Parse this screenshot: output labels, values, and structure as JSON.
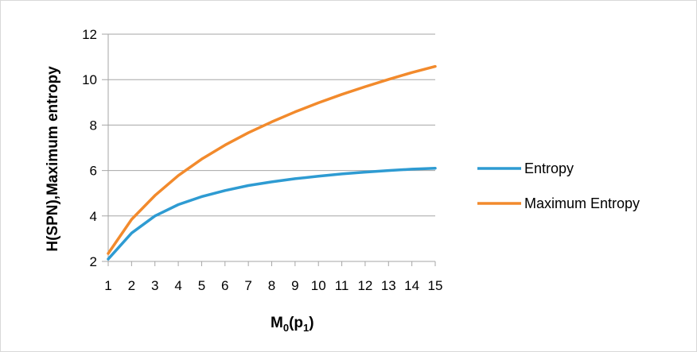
{
  "chart_data": {
    "type": "line",
    "title": "",
    "xlabel": {
      "base": "M",
      "sub1": "0",
      "mid": "(p",
      "sub2": "1",
      "end": ")"
    },
    "ylabel": "H(SPN),Maximum entropy",
    "x": [
      1,
      2,
      3,
      4,
      5,
      6,
      7,
      8,
      9,
      10,
      11,
      12,
      13,
      14,
      15
    ],
    "xticks": [
      "1",
      "2",
      "3",
      "4",
      "5",
      "6",
      "7",
      "8",
      "9",
      "10",
      "11",
      "12",
      "13",
      "14",
      "15"
    ],
    "ylim": [
      2,
      12
    ],
    "yticks": [
      "2",
      "4",
      "6",
      "8",
      "10",
      "12"
    ],
    "grid": true,
    "legend_position": "right",
    "series": [
      {
        "name": "Entropy",
        "color": "#2e9bd2",
        "values": [
          2.1,
          3.25,
          4.0,
          4.5,
          4.85,
          5.12,
          5.34,
          5.5,
          5.64,
          5.75,
          5.85,
          5.93,
          6.0,
          6.06,
          6.1
        ]
      },
      {
        "name": "Maximum Entropy",
        "color": "#f28a2c",
        "values": [
          2.35,
          3.85,
          4.9,
          5.78,
          6.5,
          7.12,
          7.66,
          8.14,
          8.58,
          8.98,
          9.35,
          9.69,
          10.01,
          10.31,
          10.58
        ]
      }
    ]
  }
}
